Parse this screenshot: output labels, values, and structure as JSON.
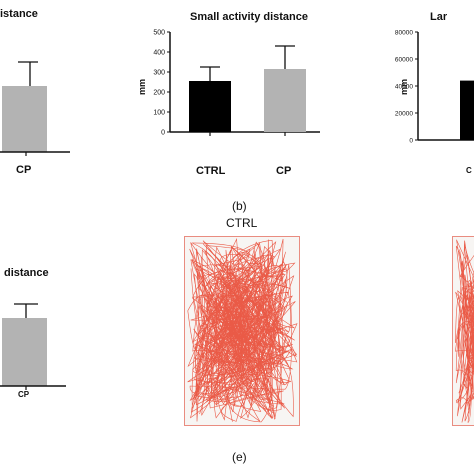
{
  "panels": {
    "a": {
      "title": "istance",
      "category": "CP"
    },
    "b": {
      "title": "Small activity distance",
      "ylabel": "mm",
      "caption": "(b)"
    },
    "c": {
      "title": "Lar",
      "ylabel": "mm",
      "category": "C"
    },
    "d": {
      "title": "distance",
      "category": "CP"
    },
    "e": {
      "title": "CTRL",
      "caption": "(e)"
    }
  },
  "colors": {
    "ctrl": "#000000",
    "cp": "#b3b3b3",
    "trace": "#e8402a",
    "frame": "#e98c80"
  },
  "chart_data": [
    {
      "type": "bar",
      "panel": "a",
      "title": "istance",
      "categories": [
        "CP"
      ],
      "values": [
        null
      ],
      "note": "partially cropped"
    },
    {
      "type": "bar",
      "panel": "b",
      "title": "Small activity distance",
      "ylabel": "mm",
      "ylim": [
        0,
        500
      ],
      "yticks": [
        "0",
        "100",
        "200",
        "300",
        "400",
        "500"
      ],
      "categories": [
        "CTRL",
        "CP"
      ],
      "values": [
        255,
        315
      ],
      "errors": [
        70,
        115
      ]
    },
    {
      "type": "bar",
      "panel": "c",
      "title": "Lar",
      "ylabel": "mm",
      "ylim": [
        0,
        80000
      ],
      "yticks": [
        "0",
        "20000",
        "40000",
        "60000",
        "80000"
      ],
      "categories": [
        "C"
      ],
      "values": [
        44000
      ]
    },
    {
      "type": "bar",
      "panel": "d",
      "title": "distance",
      "categories": [
        "CP"
      ],
      "values": [
        null
      ]
    }
  ]
}
